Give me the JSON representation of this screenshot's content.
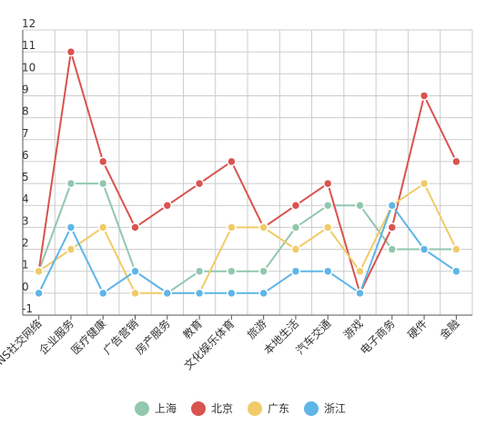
{
  "chart_data": {
    "type": "line",
    "categories": [
      "SNS社交网络",
      "企业服务",
      "医疗健康",
      "广告营销",
      "房产服务",
      "教育",
      "文化娱乐体育",
      "旅游",
      "本地生活",
      "汽车交通",
      "游戏",
      "电子商务",
      "硬件",
      "金融"
    ],
    "series": [
      {
        "name": "上海",
        "color": "#91c7ae",
        "values": [
          1,
          5,
          5,
          1,
          0,
          1,
          1,
          1,
          3,
          4,
          4,
          2,
          2,
          2
        ]
      },
      {
        "name": "北京",
        "color": "#d9534f",
        "values": [
          1,
          11,
          6,
          3,
          4,
          5,
          6,
          3,
          4,
          5,
          0,
          3,
          9,
          6
        ]
      },
      {
        "name": "广东",
        "color": "#f0cb69",
        "values": [
          1,
          2,
          3,
          0,
          0,
          0,
          3,
          3,
          2,
          3,
          1,
          4,
          5,
          2
        ]
      },
      {
        "name": "浙江",
        "color": "#5eb5e8",
        "values": [
          0,
          3,
          0,
          1,
          0,
          0,
          0,
          0,
          1,
          1,
          0,
          4,
          2,
          1
        ]
      }
    ],
    "yticks": [
      "-1",
      "0",
      "1",
      "2",
      "3",
      "4",
      "5",
      "6",
      "7",
      "8",
      "9",
      "10",
      "11",
      "12"
    ],
    "ylim": [
      -1,
      12
    ],
    "grid": true,
    "legend": "bottom",
    "title": "",
    "xlabel": "",
    "ylabel": ""
  }
}
